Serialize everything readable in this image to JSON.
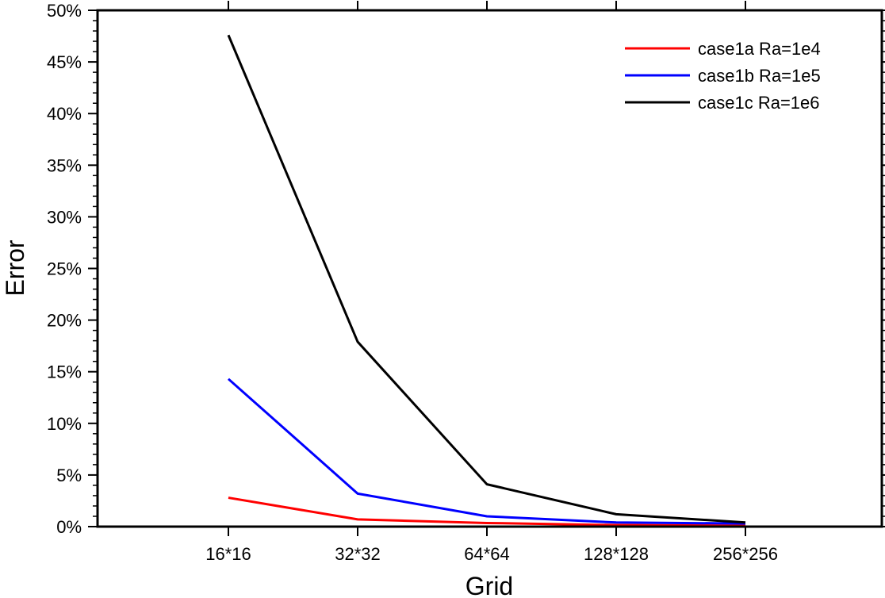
{
  "chart_data": {
    "type": "line",
    "title": "",
    "xlabel": "Grid",
    "ylabel": "Error",
    "categories": [
      "16*16",
      "32*32",
      "64*64",
      "128*128",
      "256*256"
    ],
    "ylim": [
      0,
      50
    ],
    "yticks": [
      0,
      5,
      10,
      15,
      20,
      25,
      30,
      35,
      40,
      45,
      50
    ],
    "ytick_labels": [
      "0%",
      "5%",
      "10%",
      "15%",
      "20%",
      "25%",
      "30%",
      "35%",
      "40%",
      "45%",
      "50%"
    ],
    "grid": false,
    "legend_position": "top-right",
    "series": [
      {
        "name": "case1a Ra=1e4",
        "color": "#ff0000",
        "values": [
          2.8,
          0.7,
          0.35,
          0.15,
          0.1
        ]
      },
      {
        "name": "case1b Ra=1e5",
        "color": "#0000ff",
        "values": [
          14.3,
          3.2,
          1.0,
          0.4,
          0.3
        ]
      },
      {
        "name": "case1c Ra=1e6",
        "color": "#000000",
        "values": [
          47.6,
          17.9,
          4.1,
          1.2,
          0.4
        ]
      }
    ]
  }
}
